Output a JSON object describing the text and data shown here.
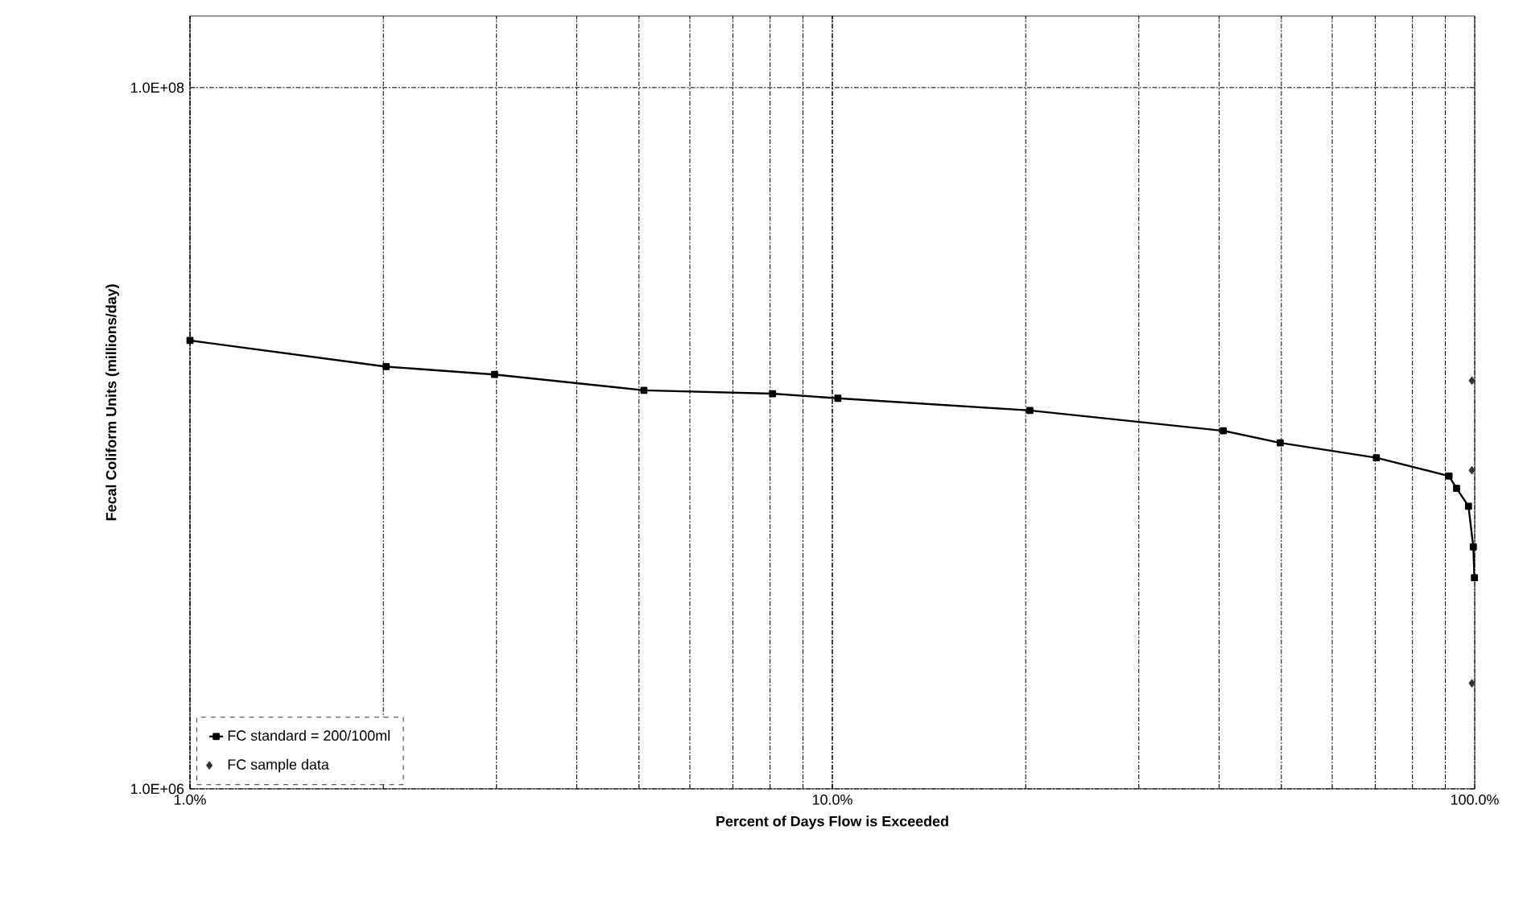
{
  "chart_data": {
    "type": "line",
    "xlabel": "Percent of Days Flow is Exceeded",
    "ylabel": "Fecal Coliform Units (millions/day)",
    "log": "xy",
    "xlim": [
      1,
      100
    ],
    "xticks": [
      {
        "value": 1,
        "label": "1.0%"
      },
      {
        "value": 10,
        "label": "10.0%"
      },
      {
        "value": 100,
        "label": "100.0%"
      }
    ],
    "ylim": [
      1000000,
      160000000
    ],
    "yticks": [
      {
        "value": 1000000,
        "label": "1.0E+06"
      },
      {
        "value": 100000000,
        "label": "1.0E+08"
      }
    ],
    "grid": true,
    "legend": "bottom left",
    "series": [
      {
        "name": "FC standard = 200/100ml",
        "marker": "square",
        "color": "#000000",
        "x": [
          1,
          2.02,
          2.98,
          5.09,
          8.07,
          10.2,
          20.3,
          40.6,
          49.8,
          70.3,
          91.2,
          93.7,
          97.8,
          99.5,
          99.9
        ],
        "values": [
          19000000,
          16000000,
          15200000,
          13700000,
          13400000,
          13000000,
          12000000,
          10500000,
          9700000,
          8800000,
          7800000,
          7200000,
          6400000,
          4900000,
          4000000
        ]
      },
      {
        "name": "FC sample data",
        "type": "scatter",
        "marker": "diamond",
        "color": "#333333",
        "x": [
          99,
          99,
          99
        ],
        "values": [
          14600000,
          8100000,
          2000000
        ]
      }
    ]
  }
}
